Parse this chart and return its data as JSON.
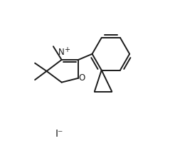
{
  "background_color": "#ffffff",
  "line_color": "#1a1a1a",
  "line_width": 1.4,
  "font_size": 8.5,
  "figure_width": 2.46,
  "figure_height": 2.36,
  "dpi": 100,
  "iodide_label": "I⁻",
  "N_label": "N",
  "N_charge": "+",
  "O_label": "O"
}
